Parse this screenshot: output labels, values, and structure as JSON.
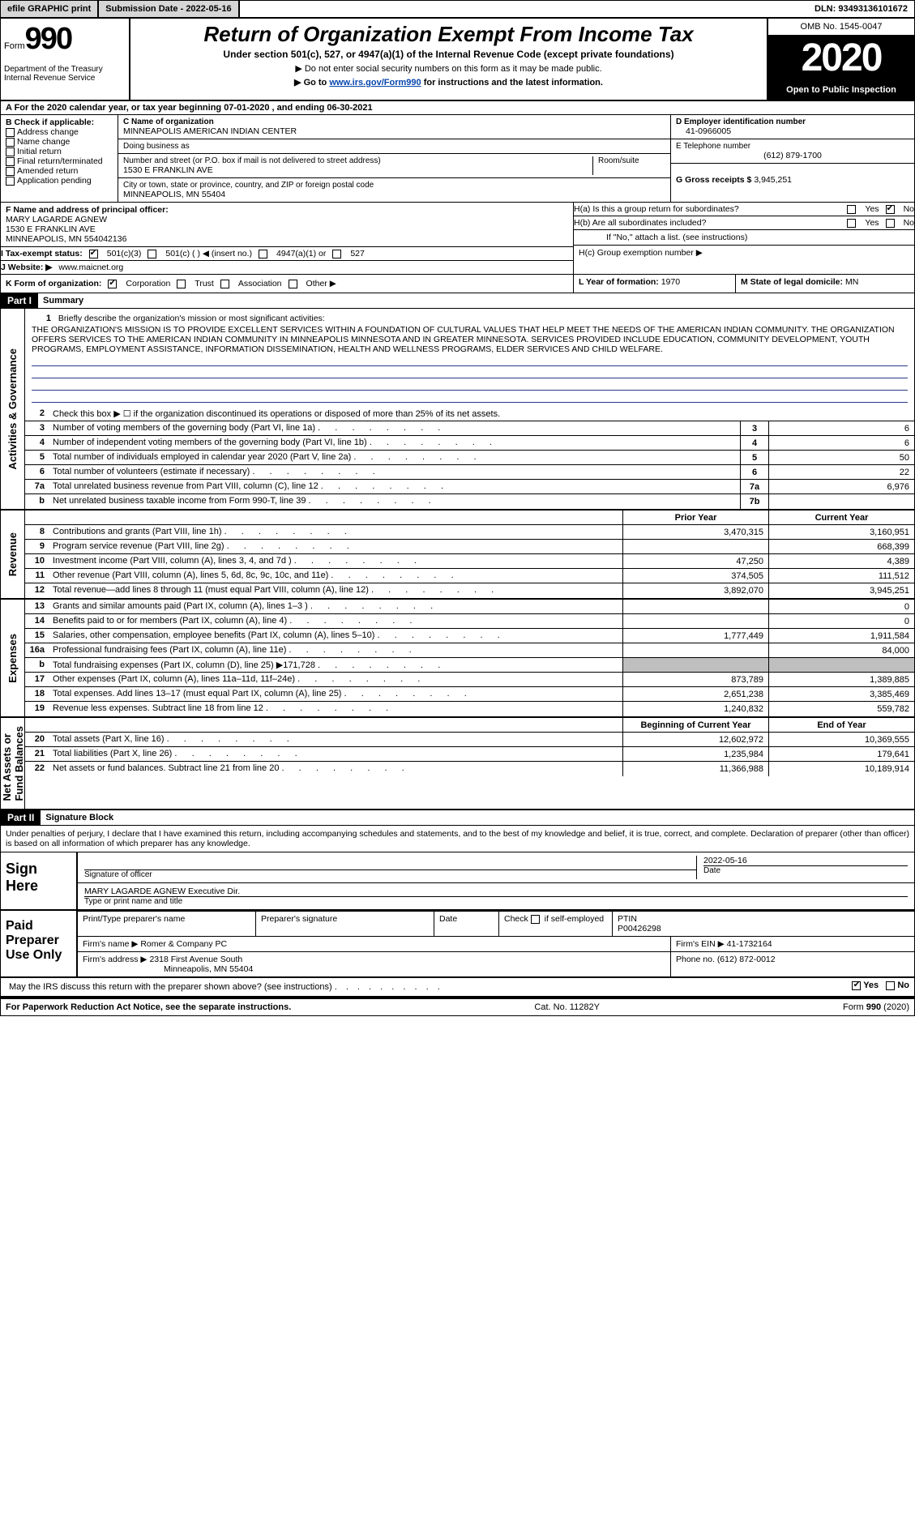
{
  "topbar": {
    "efile": "efile GRAPHIC print",
    "submission": "Submission Date - 2022-05-16",
    "dln_label": "DLN:",
    "dln": "93493136101672"
  },
  "header": {
    "form_prefix": "Form",
    "form_num": "990",
    "dept": "Department of the Treasury\nInternal Revenue Service",
    "title": "Return of Organization Exempt From Income Tax",
    "sub": "Under section 501(c), 527, or 4947(a)(1) of the Internal Revenue Code (except private foundations)",
    "note1": "▶ Do not enter social security numbers on this form as it may be made public.",
    "go_prefix": "▶ Go to ",
    "go_url": "www.irs.gov/Form990",
    "go_suffix": " for instructions and the latest information.",
    "omb": "OMB No. 1545-0047",
    "year": "2020",
    "open": "Open to Public Inspection"
  },
  "row_a": "A For the 2020 calendar year, or tax year beginning 07-01-2020    , and ending 06-30-2021",
  "box_b": {
    "label": "B Check if applicable:",
    "items": [
      "Address change",
      "Name change",
      "Initial return",
      "Final return/terminated",
      "Amended return",
      "Application pending"
    ]
  },
  "box_c": {
    "name_label": "C Name of organization",
    "name": "MINNEAPOLIS AMERICAN INDIAN CENTER",
    "dba_label": "Doing business as",
    "dba": "",
    "street_label": "Number and street (or P.O. box if mail is not delivered to street address)",
    "street": "1530 E FRANKLIN AVE",
    "room_label": "Room/suite",
    "city_label": "City or town, state or province, country, and ZIP or foreign postal code",
    "city": "MINNEAPOLIS, MN  55404"
  },
  "box_d": {
    "label": "D Employer identification number",
    "value": "41-0966005"
  },
  "box_e": {
    "label": "E Telephone number",
    "value": "(612) 879-1700"
  },
  "box_g": {
    "label": "G Gross receipts $",
    "value": "3,945,251"
  },
  "box_f": {
    "label": "F  Name and address of principal officer:",
    "name": "MARY LAGARDE AGNEW",
    "addr1": "1530 E FRANKLIN AVE",
    "addr2": "MINNEAPOLIS, MN  554042136"
  },
  "box_h": {
    "a_label": "H(a)  Is this a group return for subordinates?",
    "a_yes": "Yes",
    "a_no": "No",
    "b_label": "H(b)  Are all subordinates included?",
    "b_yes": "Yes",
    "b_no": "No",
    "b_note": "If \"No,\" attach a list. (see instructions)",
    "c_label": "H(c)  Group exemption number ▶"
  },
  "row_i": {
    "label": "I  Tax-exempt status:",
    "o1": "501(c)(3)",
    "o2": "501(c) (   ) ◀ (insert no.)",
    "o3": "4947(a)(1) or",
    "o4": "527"
  },
  "row_j": {
    "label": "J  Website: ▶",
    "value": "www.maicnet.org"
  },
  "row_k": {
    "label": "K Form of organization:",
    "o1": "Corporation",
    "o2": "Trust",
    "o3": "Association",
    "o4": "Other ▶"
  },
  "row_l": {
    "label": "L Year of formation:",
    "value": "1970"
  },
  "row_m": {
    "label": "M State of legal domicile:",
    "value": "MN"
  },
  "part1": {
    "bar": "Part I",
    "title": "Summary"
  },
  "mission": {
    "prefix": "Briefly describe the organization's mission or most significant activities:",
    "text": "THE ORGANIZATION'S MISSION IS TO PROVIDE EXCELLENT SERVICES WITHIN A FOUNDATION OF CULTURAL VALUES THAT HELP MEET THE NEEDS OF THE AMERICAN INDIAN COMMUNITY. THE ORGANIZATION OFFERS SERVICES TO THE AMERICAN INDIAN COMMUNITY IN MINNEAPOLIS MINNESOTA AND IN GREATER MINNESOTA. SERVICES PROVIDED INCLUDE EDUCATION, COMMUNITY DEVELOPMENT, YOUTH PROGRAMS, EMPLOYMENT ASSISTANCE, INFORMATION DISSEMINATION, HEALTH AND WELLNESS PROGRAMS, ELDER SERVICES AND CHILD WELFARE."
  },
  "governance": {
    "line2": "Check this box ▶ ☐  if the organization discontinued its operations or disposed of more than 25% of its net assets.",
    "rows": [
      {
        "n": "3",
        "t": "Number of voting members of the governing body (Part VI, line 1a)",
        "box": "3",
        "v": "6"
      },
      {
        "n": "4",
        "t": "Number of independent voting members of the governing body (Part VI, line 1b)",
        "box": "4",
        "v": "6"
      },
      {
        "n": "5",
        "t": "Total number of individuals employed in calendar year 2020 (Part V, line 2a)",
        "box": "5",
        "v": "50"
      },
      {
        "n": "6",
        "t": "Total number of volunteers (estimate if necessary)",
        "box": "6",
        "v": "22"
      },
      {
        "n": "7a",
        "t": "Total unrelated business revenue from Part VIII, column (C), line 12",
        "box": "7a",
        "v": "6,976"
      },
      {
        "n": "b",
        "t": "Net unrelated business taxable income from Form 990-T, line 39",
        "box": "7b",
        "v": ""
      }
    ]
  },
  "cols": {
    "prior": "Prior Year",
    "current": "Current Year",
    "boy": "Beginning of Current Year",
    "eoy": "End of Year"
  },
  "revenue": [
    {
      "n": "8",
      "t": "Contributions and grants (Part VIII, line 1h)",
      "p": "3,470,315",
      "c": "3,160,951"
    },
    {
      "n": "9",
      "t": "Program service revenue (Part VIII, line 2g)",
      "p": "",
      "c": "668,399"
    },
    {
      "n": "10",
      "t": "Investment income (Part VIII, column (A), lines 3, 4, and 7d )",
      "p": "47,250",
      "c": "4,389"
    },
    {
      "n": "11",
      "t": "Other revenue (Part VIII, column (A), lines 5, 6d, 8c, 9c, 10c, and 11e)",
      "p": "374,505",
      "c": "111,512"
    },
    {
      "n": "12",
      "t": "Total revenue—add lines 8 through 11 (must equal Part VIII, column (A), line 12)",
      "p": "3,892,070",
      "c": "3,945,251"
    }
  ],
  "expenses": [
    {
      "n": "13",
      "t": "Grants and similar amounts paid (Part IX, column (A), lines 1–3 )",
      "p": "",
      "c": "0"
    },
    {
      "n": "14",
      "t": "Benefits paid to or for members (Part IX, column (A), line 4)",
      "p": "",
      "c": "0"
    },
    {
      "n": "15",
      "t": "Salaries, other compensation, employee benefits (Part IX, column (A), lines 5–10)",
      "p": "1,777,449",
      "c": "1,911,584"
    },
    {
      "n": "16a",
      "t": "Professional fundraising fees (Part IX, column (A), line 11e)",
      "p": "",
      "c": "84,000"
    },
    {
      "n": "b",
      "t": "Total fundraising expenses (Part IX, column (D), line 25) ▶171,728",
      "p": "GREY",
      "c": "GREY"
    },
    {
      "n": "17",
      "t": "Other expenses (Part IX, column (A), lines 11a–11d, 11f–24e)",
      "p": "873,789",
      "c": "1,389,885"
    },
    {
      "n": "18",
      "t": "Total expenses. Add lines 13–17 (must equal Part IX, column (A), line 25)",
      "p": "2,651,238",
      "c": "3,385,469"
    },
    {
      "n": "19",
      "t": "Revenue less expenses. Subtract line 18 from line 12",
      "p": "1,240,832",
      "c": "559,782"
    }
  ],
  "netassets": [
    {
      "n": "20",
      "t": "Total assets (Part X, line 16)",
      "p": "12,602,972",
      "c": "10,369,555"
    },
    {
      "n": "21",
      "t": "Total liabilities (Part X, line 26)",
      "p": "1,235,984",
      "c": "179,641"
    },
    {
      "n": "22",
      "t": "Net assets or fund balances. Subtract line 21 from line 20",
      "p": "11,366,988",
      "c": "10,189,914"
    }
  ],
  "vtabs": {
    "gov": "Activities & Governance",
    "rev": "Revenue",
    "exp": "Expenses",
    "net": "Net Assets or\nFund Balances"
  },
  "part2": {
    "bar": "Part II",
    "title": "Signature Block"
  },
  "perjury": "Under penalties of perjury, I declare that I have examined this return, including accompanying schedules and statements, and to the best of my knowledge and belief, it is true, correct, and complete. Declaration of preparer (other than officer) is based on all information of which preparer has any knowledge.",
  "sign": {
    "here": "Sign Here",
    "sig_label": "Signature of officer",
    "date_label": "Date",
    "date": "2022-05-16",
    "name": "MARY LAGARDE AGNEW  Executive Dir.",
    "name_label": "Type or print name and title"
  },
  "paid": {
    "label": "Paid Preparer Use Only",
    "h1": "Print/Type preparer's name",
    "h2": "Preparer's signature",
    "h3": "Date",
    "h4_pre": "Check",
    "h4_post": "if self-employed",
    "h5": "PTIN",
    "ptin": "P00426298",
    "firm_label": "Firm's name    ▶",
    "firm": "Romer & Company PC",
    "ein_label": "Firm's EIN ▶",
    "ein": "41-1732164",
    "addr_label": "Firm's address ▶",
    "addr1": "2318 First Avenue South",
    "addr2": "Minneapolis, MN  55404",
    "phone_label": "Phone no.",
    "phone": "(612) 872-0012"
  },
  "irs_q": {
    "text": "May the IRS discuss this return with the preparer shown above? (see instructions)",
    "yes": "Yes",
    "no": "No"
  },
  "footer": {
    "left": "For Paperwork Reduction Act Notice, see the separate instructions.",
    "mid": "Cat. No. 11282Y",
    "right": "Form 990 (2020)"
  }
}
